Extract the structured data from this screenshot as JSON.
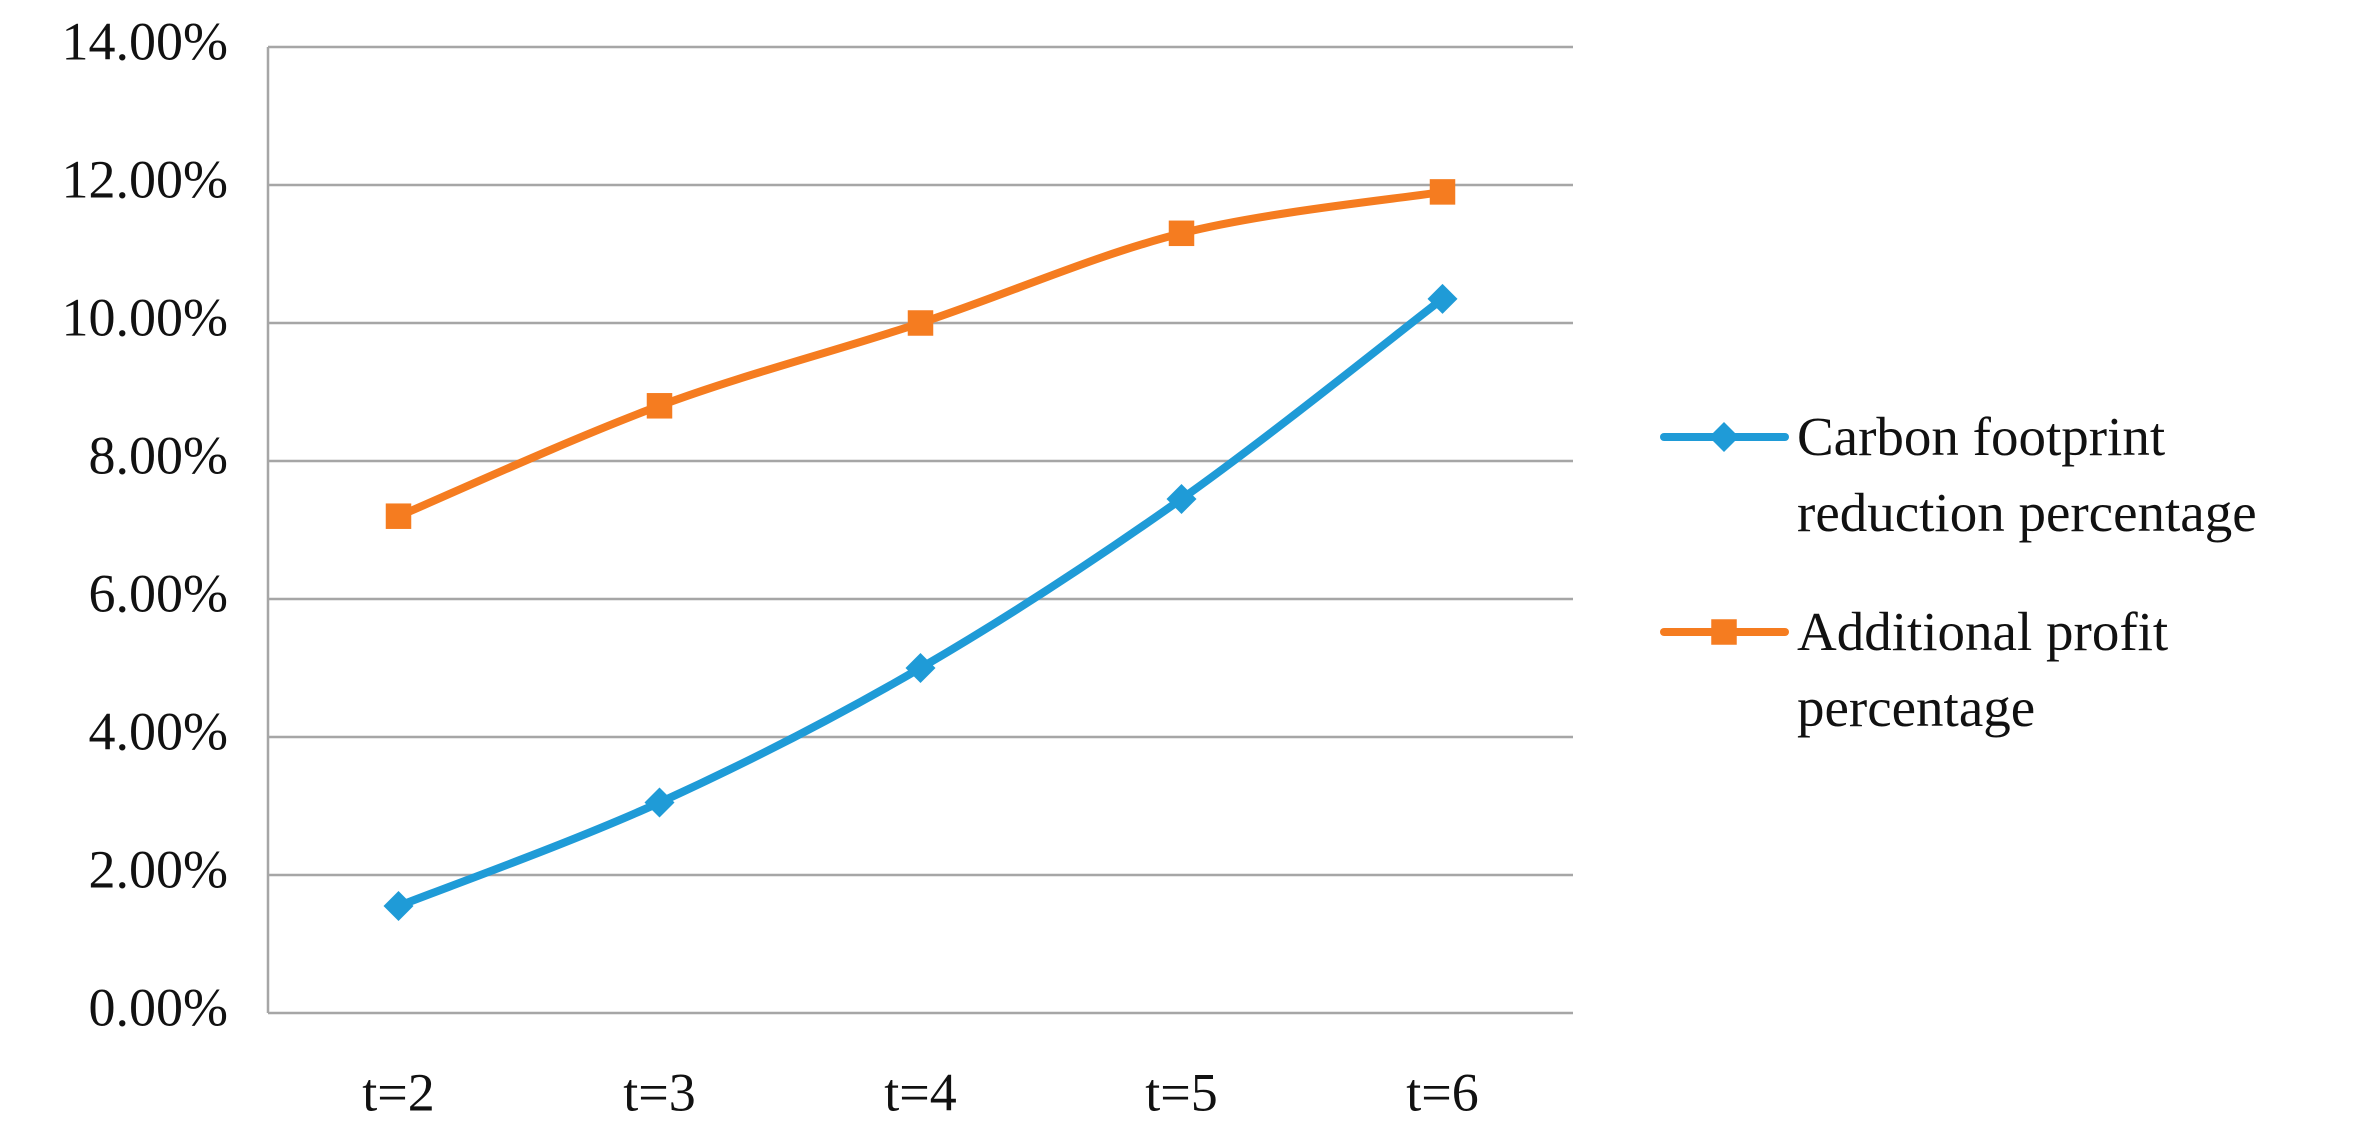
{
  "chart_data": {
    "type": "line",
    "categories": [
      "t=2",
      "t=3",
      "t=4",
      "t=5",
      "t=6"
    ],
    "series": [
      {
        "name": "Carbon footprint reduction percentage",
        "color": "#1f9bd7",
        "marker": "diamond",
        "values": [
          1.55,
          3.05,
          5.0,
          7.45,
          10.35
        ]
      },
      {
        "name": "Additional profit percentage",
        "color": "#f57c20",
        "marker": "square",
        "values": [
          7.2,
          8.8,
          10.0,
          11.3,
          11.9
        ]
      }
    ],
    "ylim": [
      0,
      14
    ],
    "yticks": [
      {
        "value": 0,
        "label": "0.00%"
      },
      {
        "value": 2,
        "label": "2.00%"
      },
      {
        "value": 4,
        "label": "4.00%"
      },
      {
        "value": 6,
        "label": "6.00%"
      },
      {
        "value": 8,
        "label": "8.00%"
      },
      {
        "value": 10,
        "label": "10.00%"
      },
      {
        "value": 12,
        "label": "12.00%"
      },
      {
        "value": 14,
        "label": "14.00%"
      }
    ],
    "grid": true,
    "legend": "right"
  }
}
